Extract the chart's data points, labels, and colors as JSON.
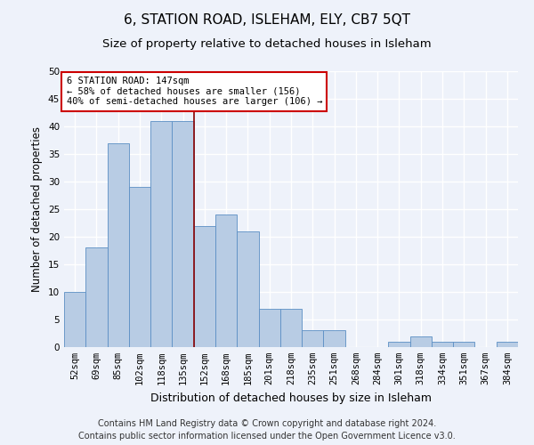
{
  "title": "6, STATION ROAD, ISLEHAM, ELY, CB7 5QT",
  "subtitle": "Size of property relative to detached houses in Isleham",
  "xlabel": "Distribution of detached houses by size in Isleham",
  "ylabel": "Number of detached properties",
  "categories": [
    "52sqm",
    "69sqm",
    "85sqm",
    "102sqm",
    "118sqm",
    "135sqm",
    "152sqm",
    "168sqm",
    "185sqm",
    "201sqm",
    "218sqm",
    "235sqm",
    "251sqm",
    "268sqm",
    "284sqm",
    "301sqm",
    "318sqm",
    "334sqm",
    "351sqm",
    "367sqm",
    "384sqm"
  ],
  "values": [
    10,
    18,
    37,
    29,
    41,
    41,
    22,
    24,
    21,
    7,
    7,
    3,
    3,
    0,
    0,
    1,
    2,
    1,
    1,
    0,
    1
  ],
  "bar_color": "#b8cce4",
  "bar_edge_color": "#5b8fc4",
  "background_color": "#eef2fa",
  "grid_color": "#ffffff",
  "ylim": [
    0,
    50
  ],
  "yticks": [
    0,
    5,
    10,
    15,
    20,
    25,
    30,
    35,
    40,
    45,
    50
  ],
  "vline_x_index": 5.5,
  "vline_color": "#8b0000",
  "annotation_text": "6 STATION ROAD: 147sqm\n← 58% of detached houses are smaller (156)\n40% of semi-detached houses are larger (106) →",
  "annotation_box_color": "#ffffff",
  "annotation_box_edge": "#cc0000",
  "footer_line1": "Contains HM Land Registry data © Crown copyright and database right 2024.",
  "footer_line2": "Contains public sector information licensed under the Open Government Licence v3.0.",
  "title_fontsize": 11,
  "subtitle_fontsize": 9.5,
  "xlabel_fontsize": 9,
  "ylabel_fontsize": 8.5,
  "tick_fontsize": 7.5,
  "annotation_fontsize": 7.5,
  "footer_fontsize": 7
}
